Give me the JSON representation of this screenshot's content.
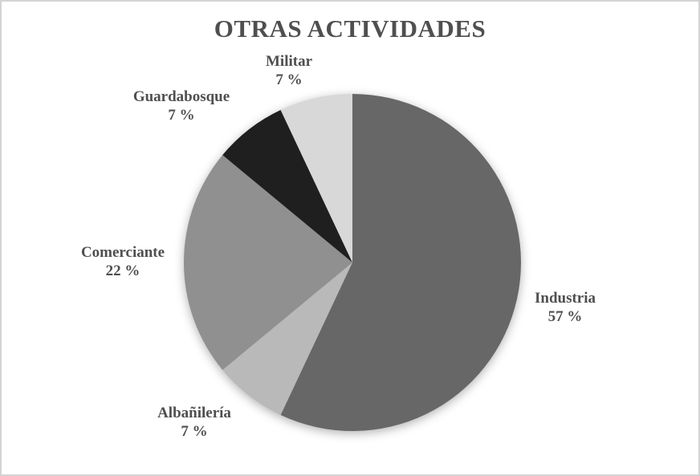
{
  "window": {
    "background_color": "#ffffff",
    "frame_border_color": "#d4d4d4",
    "text_color": "#4f4f4f"
  },
  "chart_data": {
    "type": "pie",
    "title": "OTRAS ACTIVIDADES",
    "start_angle_deg": 0,
    "direction": "clockwise",
    "legend_position": "none",
    "labels_style": "outside, name above percent",
    "slices": [
      {
        "label": "Industria",
        "value": 57,
        "pct_text": "57 %",
        "color": "#676767"
      },
      {
        "label": "Albañilería",
        "value": 7,
        "pct_text": "7 %",
        "color": "#b9b9b9"
      },
      {
        "label": "Comerciante",
        "value": 22,
        "pct_text": "22 %",
        "color": "#909090"
      },
      {
        "label": "Guardabosque",
        "value": 7,
        "pct_text": "7 %",
        "color": "#1f1f1f"
      },
      {
        "label": "Militar",
        "value": 7,
        "pct_text": "7 %",
        "color": "#d8d8d8"
      }
    ]
  }
}
